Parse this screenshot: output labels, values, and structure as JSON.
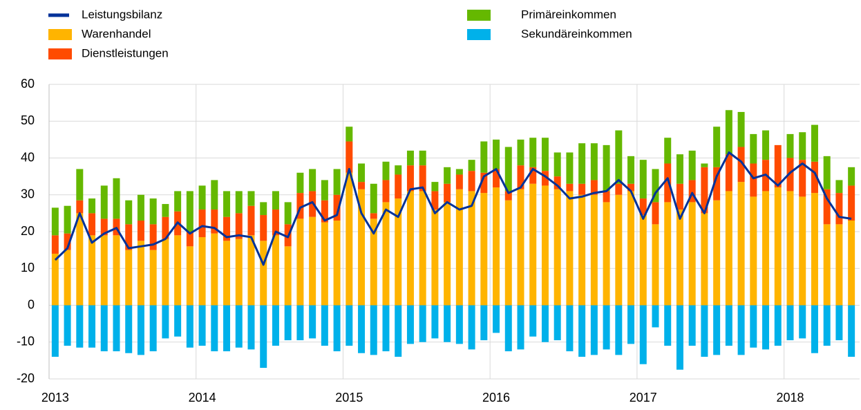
{
  "chart_data": {
    "type": "bar",
    "stacked": true,
    "categories": [
      "2013",
      null,
      null,
      null,
      null,
      null,
      null,
      null,
      null,
      null,
      null,
      null,
      "2014",
      null,
      null,
      null,
      null,
      null,
      null,
      null,
      null,
      null,
      null,
      null,
      "2015",
      null,
      null,
      null,
      null,
      null,
      null,
      null,
      null,
      null,
      null,
      null,
      "2016",
      null,
      null,
      null,
      null,
      null,
      null,
      null,
      null,
      null,
      null,
      null,
      "2017",
      null,
      null,
      null,
      null,
      null,
      null,
      null,
      null,
      null,
      null,
      null,
      "2018",
      null,
      null,
      null,
      null,
      null
    ],
    "series": [
      {
        "name": "Leistungsbilanz",
        "type": "line",
        "color": "#003299",
        "values": [
          12.3,
          15.5,
          25,
          17,
          19.5,
          21,
          15.5,
          16,
          16.5,
          18,
          22.5,
          19.5,
          21.5,
          21,
          18.5,
          19,
          18.5,
          11,
          20,
          18.5,
          26.5,
          28,
          23,
          24.5,
          37,
          25,
          19.5,
          26,
          24,
          31.5,
          32,
          25,
          28,
          26,
          27,
          35,
          37,
          30.5,
          32,
          37,
          35,
          32.5,
          29,
          29.5,
          30.5,
          31,
          34,
          31,
          23.5,
          30.5,
          34.5,
          23.5,
          30.5,
          25,
          35,
          41.5,
          39,
          34.5,
          35.5,
          32.5,
          36,
          38.5,
          36,
          29,
          24,
          23.5
        ]
      },
      {
        "name": "Warenhandel",
        "type": "bar",
        "color": "#ffb400",
        "values": [
          14,
          15,
          25,
          19,
          19,
          19,
          15,
          17.5,
          15,
          18,
          19,
          16,
          18.5,
          19.5,
          17.5,
          18,
          19,
          17.5,
          19,
          16,
          23.5,
          24,
          22.5,
          23,
          36,
          31.5,
          23.5,
          28,
          29,
          31,
          31,
          26,
          28,
          31.5,
          31,
          30.5,
          32,
          28.5,
          31.5,
          33,
          32.5,
          31.5,
          31,
          30,
          30,
          28,
          30,
          31,
          24.5,
          22,
          28,
          26,
          28,
          25,
          28.5,
          31,
          33.5,
          29.5,
          31,
          32,
          31,
          29.5,
          30.5,
          22,
          22,
          23
        ]
      },
      {
        "name": "Dienstleistungen",
        "type": "bar",
        "color": "#ff4b00",
        "values": [
          5,
          4.5,
          3.5,
          6,
          4.5,
          4.5,
          7,
          5.5,
          7,
          6,
          6.5,
          4,
          7.5,
          6.5,
          6.5,
          7,
          8,
          7,
          7,
          6,
          7,
          7,
          6,
          7,
          8.5,
          2,
          1.5,
          6,
          6.5,
          7,
          7,
          5,
          5,
          4,
          5.5,
          5.5,
          5,
          2.5,
          6.5,
          4.5,
          4,
          3.5,
          2,
          3,
          4,
          3,
          3,
          2,
          4.5,
          6,
          10.5,
          7,
          6,
          12.5,
          9,
          10,
          9.5,
          9,
          8.5,
          11.5,
          9,
          10,
          8.5,
          9.5,
          8.5,
          9.5
        ]
      },
      {
        "name": "Primäreinkommen",
        "type": "bar",
        "color": "#65b800",
        "values": [
          7.5,
          7.5,
          8.5,
          4,
          9,
          11,
          6.5,
          7,
          7,
          3.5,
          5.5,
          11,
          6.5,
          8,
          7,
          6,
          4,
          3.5,
          5,
          6,
          5.5,
          6,
          5.5,
          7,
          4,
          5,
          8,
          5,
          2.5,
          4,
          4,
          2.5,
          4.5,
          1.5,
          3,
          8.5,
          8,
          12,
          7,
          8,
          9,
          6.5,
          8.5,
          11,
          10,
          12.5,
          14.5,
          7.5,
          10.5,
          9,
          7,
          8,
          8,
          1,
          11,
          12,
          9.5,
          8,
          8,
          0,
          6.5,
          7.5,
          10,
          9,
          3.5,
          5
        ]
      },
      {
        "name": "Sekundäreinkommen",
        "type": "bar",
        "color": "#00b1ea",
        "values": [
          -14,
          -11,
          -11.5,
          -11.5,
          -12.5,
          -12.5,
          -13,
          -13.5,
          -12.5,
          -9,
          -8.5,
          -11.5,
          -11,
          -12.5,
          -12.5,
          -11.5,
          -12,
          -17,
          -11,
          -9.5,
          -9.5,
          -9,
          -11,
          -12.5,
          -11,
          -13,
          -13.5,
          -12.5,
          -14,
          -10.5,
          -10,
          -9,
          -10,
          -10.5,
          -12,
          -9.5,
          -7.5,
          -12.5,
          -12,
          -8.5,
          -10,
          -9.5,
          -12.5,
          -14,
          -13.5,
          -12,
          -13.5,
          -10.5,
          -16,
          -6,
          -11,
          -17.5,
          -11,
          -14,
          -13.5,
          -11,
          -13.5,
          -11.5,
          -12,
          -11,
          -9.5,
          -9,
          -13,
          -11,
          -9.5,
          -14
        ]
      }
    ],
    "ylim": [
      -20,
      60
    ],
    "yticks": [
      -20,
      -10,
      0,
      10,
      20,
      30,
      40,
      50,
      60
    ],
    "grid": true
  }
}
